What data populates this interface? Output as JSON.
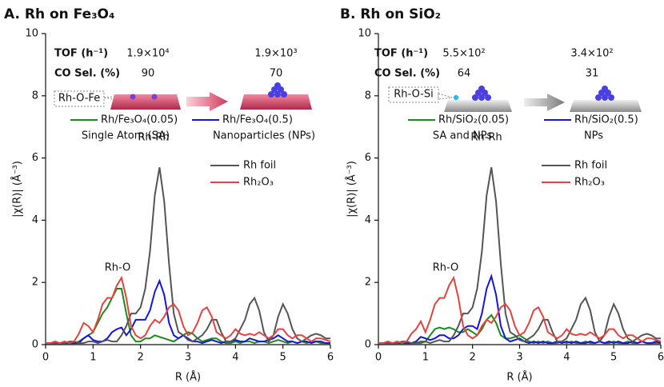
{
  "chart_data": [
    {
      "type": "line",
      "title": "A. Rh on Fe₃O₄",
      "xlabel": "R (Å)",
      "ylabel": "|χ(R)| (Å⁻³)",
      "xlim": [
        0,
        6
      ],
      "ylim": [
        0,
        10
      ],
      "xticks": [
        0,
        1,
        2,
        3,
        4,
        5,
        6
      ],
      "yticks": [
        0,
        2,
        4,
        6,
        8,
        10
      ],
      "table": [
        {
          "label": "TOF (h⁻¹)",
          "values": [
            {
              "value": 19000,
              "label": "1.9×10⁴"
            },
            {
              "value": 1900,
              "label": "1.9×10³"
            }
          ]
        },
        {
          "label": "CO Sel. (%)",
          "values": [
            90,
            70
          ]
        }
      ],
      "diagram_label": "Rh-O-Fe",
      "annotations": [
        "Rh-Rh",
        "Rh-O"
      ],
      "x": [
        0,
        0.1,
        0.2,
        0.3,
        0.4,
        0.5,
        0.6,
        0.7,
        0.8,
        0.9,
        1,
        1.1,
        1.2,
        1.3,
        1.4,
        1.5,
        1.6,
        1.7,
        1.8,
        1.9,
        2,
        2.1,
        2.2,
        2.3,
        2.4,
        2.5,
        2.6,
        2.7,
        2.8,
        2.9,
        3,
        3.1,
        3.2,
        3.3,
        3.4,
        3.5,
        3.6,
        3.7,
        3.8,
        3.9,
        4,
        4.1,
        4.2,
        4.3,
        4.4,
        4.5,
        4.6,
        4.7,
        4.8,
        4.9,
        5,
        5.1,
        5.2,
        5.3,
        5.4,
        5.5,
        5.6,
        5.7,
        5.8,
        5.9,
        6
      ],
      "series": [
        {
          "name": "Rh/Fe₃O₄(0.05)",
          "description": "Single Atom (SA)",
          "color": "#1a8c1a",
          "values": [
            0.05,
            0.05,
            0.05,
            0.05,
            0.05,
            0.05,
            0.05,
            0.1,
            0.2,
            0.3,
            0.4,
            0.7,
            1.0,
            1.2,
            1.5,
            1.8,
            1.8,
            1.0,
            0.3,
            0.1,
            0.1,
            0.2,
            0.2,
            0.3,
            0.25,
            0.2,
            0.15,
            0.1,
            0.2,
            0.3,
            0.4,
            0.35,
            0.2,
            0.1,
            0.15,
            0.2,
            0.2,
            0.1,
            0.05,
            0.05,
            0.1,
            0.05,
            0.1,
            0.1,
            0.05,
            0.1,
            0.1,
            0.05,
            0.1,
            0.15,
            0.1,
            0.05,
            0.1,
            0.05,
            0.1,
            0.05,
            0.1,
            0.1,
            0.05,
            0.05,
            0.05
          ]
        },
        {
          "name": "Rh/Fe₃O₄(0.5)",
          "description": "Nanoparticles (NPs)",
          "color": "#1515e0",
          "values": [
            0.05,
            0.05,
            0.05,
            0.05,
            0.05,
            0.05,
            0.05,
            0.05,
            0.2,
            0.3,
            0.15,
            0.1,
            0.1,
            0.2,
            0.4,
            0.5,
            0.55,
            0.3,
            0.5,
            0.8,
            0.8,
            0.8,
            1.1,
            1.7,
            2.05,
            1.6,
            0.7,
            0.3,
            0.2,
            0.3,
            0.2,
            0.1,
            0.1,
            0.05,
            0.1,
            0.15,
            0.1,
            0.05,
            0.1,
            0.1,
            0.15,
            0.1,
            0.1,
            0.2,
            0.15,
            0.1,
            0.1,
            0.15,
            0.2,
            0.3,
            0.2,
            0.1,
            0.1,
            0.05,
            0.1,
            0.1,
            0.05,
            0.1,
            0.1,
            0.05,
            0.05
          ]
        },
        {
          "name": "Rh foil",
          "color": "#555555",
          "values": [
            0.05,
            0.05,
            0.05,
            0.05,
            0.05,
            0.1,
            0.1,
            0.05,
            0.05,
            0.1,
            0.1,
            0.05,
            0.1,
            0.15,
            0.1,
            0.1,
            0.3,
            0.6,
            1.0,
            1.0,
            1.2,
            1.8,
            3.0,
            4.8,
            5.7,
            4.6,
            2.6,
            1.0,
            0.4,
            0.3,
            0.15,
            0.1,
            0.2,
            0.3,
            0.5,
            0.8,
            0.8,
            0.4,
            0.1,
            0.1,
            0.2,
            0.5,
            0.8,
            1.3,
            1.5,
            1.1,
            0.4,
            0.1,
            0.3,
            0.9,
            1.3,
            1.0,
            0.5,
            0.2,
            0.1,
            0.2,
            0.3,
            0.35,
            0.3,
            0.2,
            0.2
          ]
        },
        {
          "name": "Rh₂O₃",
          "color": "#e8423f",
          "values": [
            0.05,
            0.05,
            0.1,
            0.05,
            0.1,
            0.05,
            0.1,
            0.35,
            0.7,
            0.6,
            0.4,
            0.8,
            1.3,
            1.5,
            1.5,
            1.9,
            2.15,
            1.5,
            0.6,
            0.3,
            0.2,
            0.3,
            0.6,
            0.8,
            0.7,
            0.9,
            1.2,
            1.3,
            1.1,
            0.6,
            0.3,
            0.4,
            0.7,
            1.1,
            1.2,
            0.9,
            0.4,
            0.3,
            0.2,
            0.3,
            0.5,
            0.35,
            0.3,
            0.35,
            0.3,
            0.4,
            0.3,
            0.2,
            0.3,
            0.5,
            0.5,
            0.3,
            0.2,
            0.3,
            0.3,
            0.2,
            0.1,
            0.2,
            0.2,
            0.15,
            0.1
          ]
        }
      ]
    },
    {
      "type": "line",
      "title": "B. Rh on SiO₂",
      "xlabel": "R (Å)",
      "ylabel": "|χ(R)| (Å⁻³)",
      "xlim": [
        0,
        6
      ],
      "ylim": [
        0,
        10
      ],
      "xticks": [
        0,
        1,
        2,
        3,
        4,
        5,
        6
      ],
      "yticks": [
        0,
        2,
        4,
        6,
        8,
        10
      ],
      "table": [
        {
          "label": "TOF (h⁻¹)",
          "values": [
            {
              "value": 550,
              "label": "5.5×10²"
            },
            {
              "value": 340,
              "label": "3.4×10²"
            }
          ]
        },
        {
          "label": "CO Sel. (%)",
          "values": [
            64,
            31
          ]
        }
      ],
      "diagram_label": "Rh-O-Si",
      "annotations": [
        "Rh-Rh",
        "Rh-O"
      ],
      "x": [
        0,
        0.1,
        0.2,
        0.3,
        0.4,
        0.5,
        0.6,
        0.7,
        0.8,
        0.9,
        1,
        1.1,
        1.2,
        1.3,
        1.4,
        1.5,
        1.6,
        1.7,
        1.8,
        1.9,
        2,
        2.1,
        2.2,
        2.3,
        2.4,
        2.5,
        2.6,
        2.7,
        2.8,
        2.9,
        3,
        3.1,
        3.2,
        3.3,
        3.4,
        3.5,
        3.6,
        3.7,
        3.8,
        3.9,
        4,
        4.1,
        4.2,
        4.3,
        4.4,
        4.5,
        4.6,
        4.7,
        4.8,
        4.9,
        5,
        5.1,
        5.2,
        5.3,
        5.4,
        5.5,
        5.6,
        5.7,
        5.8,
        5.9,
        6
      ],
      "series": [
        {
          "name": "Rh/SiO₂(0.05)",
          "description": "SA and NPs",
          "color": "#1a8c1a",
          "values": [
            0.05,
            0.05,
            0.05,
            0.05,
            0.05,
            0.05,
            0.05,
            0.05,
            0.05,
            0.05,
            0.1,
            0.3,
            0.5,
            0.55,
            0.5,
            0.55,
            0.5,
            0.4,
            0.4,
            0.5,
            0.4,
            0.3,
            0.5,
            0.8,
            0.95,
            0.7,
            0.3,
            0.2,
            0.2,
            0.25,
            0.3,
            0.2,
            0.1,
            0.05,
            0.1,
            0.05,
            0.1,
            0.05,
            0.05,
            0.1,
            0.05,
            0.1,
            0.05,
            0.05,
            0.1,
            0.05,
            0.05,
            0.1,
            0.05,
            0.05,
            0.1,
            0.05,
            0.05,
            0.1,
            0.05,
            0.05,
            0.1,
            0.05,
            0.05,
            0.05,
            0.05
          ]
        },
        {
          "name": "Rh/SiO₂(0.5)",
          "description": "NPs",
          "color": "#1515e0",
          "values": [
            0.05,
            0.05,
            0.05,
            0.05,
            0.05,
            0.05,
            0.05,
            0.05,
            0.1,
            0.25,
            0.2,
            0.15,
            0.2,
            0.3,
            0.3,
            0.2,
            0.2,
            0.3,
            0.5,
            0.6,
            0.6,
            0.5,
            1.0,
            1.8,
            2.2,
            1.6,
            0.6,
            0.2,
            0.1,
            0.15,
            0.2,
            0.1,
            0.05,
            0.1,
            0.05,
            0.1,
            0.05,
            0.05,
            0.1,
            0.05,
            0.1,
            0.05,
            0.1,
            0.05,
            0.05,
            0.1,
            0.05,
            0.1,
            0.05,
            0.1,
            0.05,
            0.1,
            0.05,
            0.05,
            0.1,
            0.05,
            0.1,
            0.05,
            0.05,
            0.1,
            0.05
          ]
        },
        {
          "name": "Rh foil",
          "color": "#555555",
          "values": [
            0.05,
            0.05,
            0.05,
            0.05,
            0.05,
            0.1,
            0.1,
            0.05,
            0.05,
            0.1,
            0.1,
            0.05,
            0.1,
            0.15,
            0.1,
            0.1,
            0.3,
            0.6,
            1.0,
            1.0,
            1.2,
            1.8,
            3.0,
            4.8,
            5.7,
            4.6,
            2.6,
            1.0,
            0.4,
            0.3,
            0.15,
            0.1,
            0.2,
            0.3,
            0.5,
            0.8,
            0.8,
            0.4,
            0.1,
            0.1,
            0.2,
            0.5,
            0.8,
            1.3,
            1.5,
            1.1,
            0.4,
            0.1,
            0.3,
            0.9,
            1.3,
            1.0,
            0.5,
            0.2,
            0.1,
            0.2,
            0.3,
            0.35,
            0.3,
            0.2,
            0.2
          ]
        },
        {
          "name": "Rh₂O₃",
          "color": "#e8423f",
          "values": [
            0.05,
            0.05,
            0.1,
            0.05,
            0.1,
            0.05,
            0.1,
            0.35,
            0.5,
            0.75,
            0.4,
            0.8,
            1.3,
            1.5,
            1.5,
            1.9,
            2.15,
            1.5,
            0.6,
            0.3,
            0.2,
            0.3,
            0.6,
            0.8,
            0.7,
            0.9,
            1.2,
            1.3,
            1.1,
            0.6,
            0.3,
            0.4,
            0.7,
            1.1,
            1.2,
            0.9,
            0.4,
            0.3,
            0.2,
            0.3,
            0.5,
            0.35,
            0.3,
            0.35,
            0.3,
            0.4,
            0.3,
            0.2,
            0.3,
            0.5,
            0.5,
            0.3,
            0.2,
            0.3,
            0.3,
            0.2,
            0.1,
            0.2,
            0.2,
            0.15,
            0.1
          ]
        }
      ]
    }
  ]
}
